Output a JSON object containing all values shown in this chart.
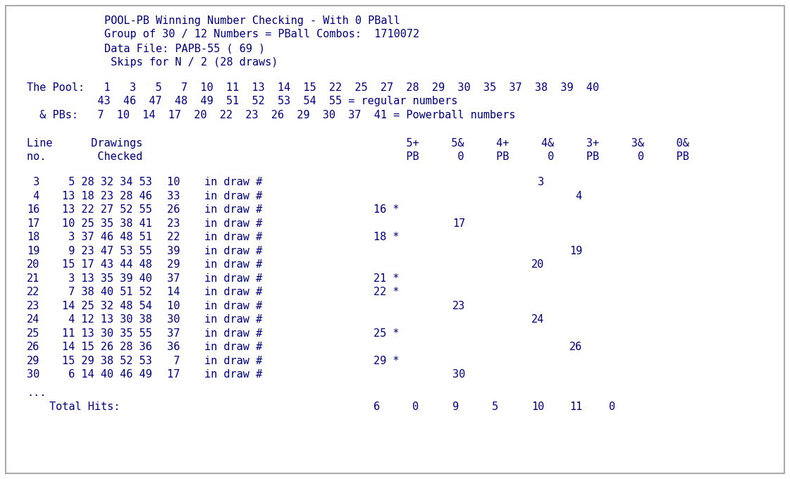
{
  "title_lines": [
    "POOL-PB Winning Number Checking - With 0 PBall",
    "Group of 30 / 12 Numbers = PBall Combos:  1710072",
    "Data File: PAPB-55 ( 69 )",
    " Skips for N / 2 (28 draws)"
  ],
  "pool_line1": "The Pool:   1   3   5   7  10  11  13  14  15  22  25  27  28  29  30  35  37  38  39  40",
  "pool_line2": "           43  46  47  48  49  51  52  53  54  55 = regular numbers",
  "pool_line3": "  & PBs:   7  10  14  17  20  22  23  26  29  30  37  41 = Powerball numbers",
  "hdr1": "Line      Drawings                                         5+     5&     4+     4&     3+     3&     0&",
  "hdr2": "no.        Checked                                         PB      0     PB      0     PB      0     PB",
  "rows": [
    {
      "line": " 3",
      "nums": " 5 28 32 34 53",
      "pb": " 10",
      "hit_col": 4,
      "hit_val": " 3",
      "star": false
    },
    {
      "line": " 4",
      "nums": "13 18 23 28 46",
      "pb": " 33",
      "hit_col": 5,
      "hit_val": " 4",
      "star": false
    },
    {
      "line": "16",
      "nums": "13 22 27 52 55",
      "pb": " 26",
      "hit_col": 0,
      "hit_val": "16 *",
      "star": true
    },
    {
      "line": "17",
      "nums": "10 25 35 38 41",
      "pb": " 23",
      "hit_col": 2,
      "hit_val": "17",
      "star": false
    },
    {
      "line": "18",
      "nums": " 3 37 46 48 51",
      "pb": " 22",
      "hit_col": 0,
      "hit_val": "18 *",
      "star": true
    },
    {
      "line": "19",
      "nums": " 9 23 47 53 55",
      "pb": " 39",
      "hit_col": 5,
      "hit_val": "19",
      "star": false
    },
    {
      "line": "20",
      "nums": "15 17 43 44 48",
      "pb": " 29",
      "hit_col": 4,
      "hit_val": "20",
      "star": false
    },
    {
      "line": "21",
      "nums": " 3 13 35 39 40",
      "pb": " 37",
      "hit_col": 0,
      "hit_val": "21 *",
      "star": true
    },
    {
      "line": "22",
      "nums": " 7 38 40 51 52",
      "pb": " 14",
      "hit_col": 0,
      "hit_val": "22 *",
      "star": true
    },
    {
      "line": "23",
      "nums": "14 25 32 48 54",
      "pb": " 10",
      "hit_col": 2,
      "hit_val": "23",
      "star": false
    },
    {
      "line": "24",
      "nums": " 4 12 13 30 38",
      "pb": " 30",
      "hit_col": 4,
      "hit_val": "24",
      "star": false
    },
    {
      "line": "25",
      "nums": "11 13 30 35 55",
      "pb": " 37",
      "hit_col": 0,
      "hit_val": "25 *",
      "star": true
    },
    {
      "line": "26",
      "nums": "14 15 26 28 36",
      "pb": " 36",
      "hit_col": 5,
      "hit_val": "26",
      "star": false
    },
    {
      "line": "29",
      "nums": "15 29 38 52 53",
      "pb": "  7",
      "hit_col": 0,
      "hit_val": "29 *",
      "star": true
    },
    {
      "line": "30",
      "nums": " 6 14 40 46 49",
      "pb": " 17",
      "hit_col": 2,
      "hit_val": "30",
      "star": false
    }
  ],
  "totals": [
    "6",
    "0",
    "9",
    "5",
    "10",
    "11",
    "0"
  ],
  "bg_color": "#ffffff",
  "border_color": "#aaaaaa",
  "font_color": "#000080",
  "font_family": "DejaVu Sans Mono",
  "font_size": 11.0,
  "fig_width": 11.21,
  "fig_height": 6.8,
  "dpi": 100
}
